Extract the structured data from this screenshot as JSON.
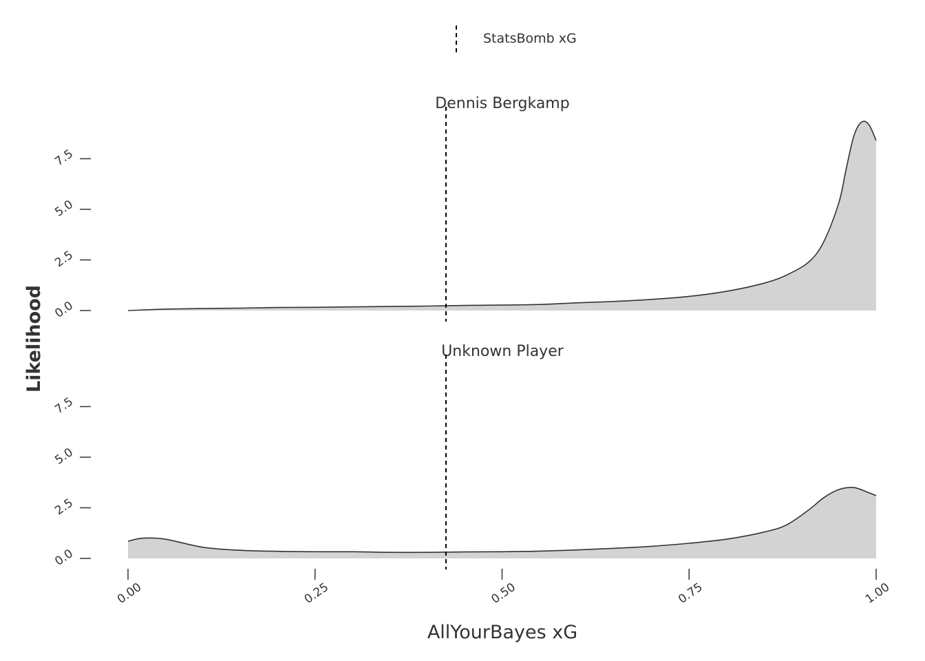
{
  "chart_data": {
    "type": "area",
    "title": "",
    "xlabel": "AllYourBayes xG",
    "ylabel": "Likelihood",
    "xlim": [
      0,
      1
    ],
    "ylim": [
      0,
      9.5
    ],
    "x_ticks": [
      "0.00",
      "0.25",
      "0.50",
      "0.75",
      "1.00"
    ],
    "y_ticks": [
      "0.0",
      "2.5",
      "5.0",
      "7.5"
    ],
    "grid": false,
    "legend": {
      "position": "top",
      "entries": [
        {
          "label": "StatsBomb xG",
          "style": "dashed-line"
        }
      ]
    },
    "reference_line": {
      "name": "StatsBomb xG",
      "x": 0.425
    },
    "fill_color": "#d3d3d3",
    "line_color": "#333333",
    "panels": [
      {
        "title": "Dennis Bergkamp",
        "x": [
          0,
          0.05,
          0.1,
          0.15,
          0.2,
          0.25,
          0.3,
          0.35,
          0.4,
          0.45,
          0.5,
          0.55,
          0.6,
          0.65,
          0.7,
          0.75,
          0.8,
          0.85,
          0.88,
          0.91,
          0.93,
          0.95,
          0.96,
          0.97,
          0.98,
          0.99,
          1.0
        ],
        "y": [
          0.0,
          0.07,
          0.1,
          0.12,
          0.15,
          0.16,
          0.18,
          0.2,
          0.22,
          0.25,
          0.27,
          0.3,
          0.38,
          0.45,
          0.55,
          0.7,
          0.95,
          1.35,
          1.75,
          2.4,
          3.4,
          5.3,
          7.0,
          8.6,
          9.3,
          9.2,
          8.4
        ]
      },
      {
        "title": "Unknown Player",
        "x": [
          0,
          0.02,
          0.05,
          0.1,
          0.15,
          0.2,
          0.25,
          0.3,
          0.35,
          0.4,
          0.45,
          0.5,
          0.55,
          0.6,
          0.65,
          0.7,
          0.75,
          0.8,
          0.85,
          0.88,
          0.91,
          0.93,
          0.95,
          0.97,
          0.99,
          1.0
        ],
        "y": [
          0.85,
          1.0,
          0.95,
          0.55,
          0.4,
          0.35,
          0.33,
          0.33,
          0.3,
          0.3,
          0.32,
          0.33,
          0.36,
          0.42,
          0.5,
          0.6,
          0.75,
          0.95,
          1.3,
          1.65,
          2.4,
          3.0,
          3.4,
          3.5,
          3.25,
          3.1
        ]
      }
    ]
  }
}
